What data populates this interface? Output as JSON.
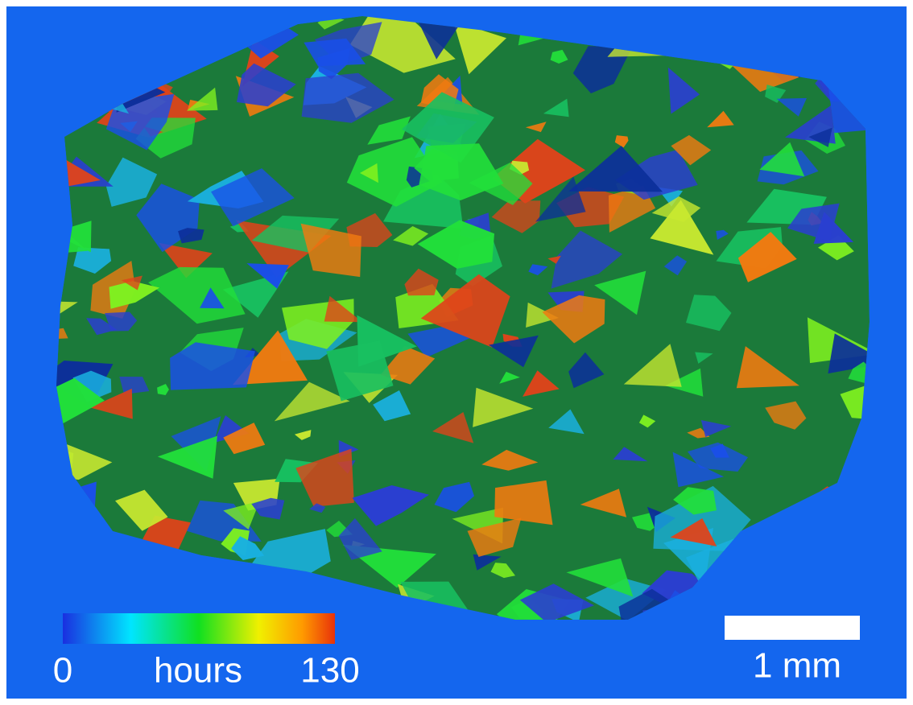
{
  "colorbar": {
    "min": "0",
    "label": "hours",
    "max": "130"
  },
  "scale_bar": {
    "label": "1 mm"
  }
}
